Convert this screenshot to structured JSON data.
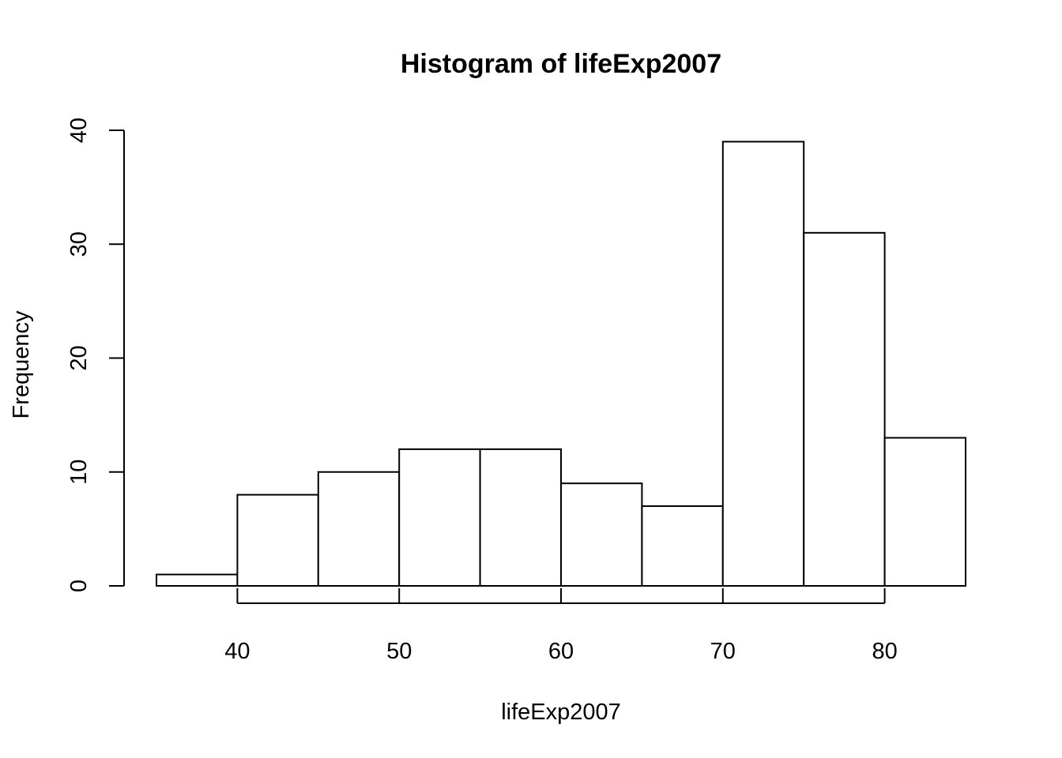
{
  "chart_data": {
    "type": "bar",
    "title": "Histogram of lifeExp2007",
    "xlabel": "lifeExp2007",
    "ylabel": "Frequency",
    "bins": [
      {
        "from": 35,
        "to": 40,
        "count": 1
      },
      {
        "from": 40,
        "to": 45,
        "count": 8
      },
      {
        "from": 45,
        "to": 50,
        "count": 10
      },
      {
        "from": 50,
        "to": 55,
        "count": 12
      },
      {
        "from": 55,
        "to": 60,
        "count": 12
      },
      {
        "from": 60,
        "to": 65,
        "count": 9
      },
      {
        "from": 65,
        "to": 70,
        "count": 7
      },
      {
        "from": 70,
        "to": 75,
        "count": 39
      },
      {
        "from": 75,
        "to": 80,
        "count": 31
      },
      {
        "from": 80,
        "to": 85,
        "count": 13
      }
    ],
    "xticks": [
      "40",
      "50",
      "60",
      "70",
      "80"
    ],
    "yticks": [
      "0",
      "10",
      "20",
      "30",
      "40"
    ],
    "xlim": [
      35,
      85
    ],
    "ylim": [
      0,
      40
    ],
    "grid": false,
    "bar_fill": "#ffffff",
    "bar_stroke": "#000000"
  }
}
